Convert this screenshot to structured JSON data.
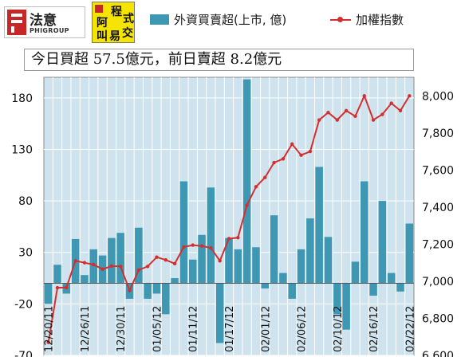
{
  "logos": {
    "left": {
      "chinese": "法意",
      "english": "PHIGROUP"
    },
    "right": {
      "chars": [
        "程",
        "式",
        "阿",
        "交",
        "叫",
        "易"
      ]
    }
  },
  "legend": {
    "bar_series": "外資買賣超(上市, 億)",
    "line_series": "加權指數"
  },
  "headline": "今日買超 57.5億元，前日賣超 8.2億元",
  "colors": {
    "bar": "#3e98b3",
    "line": "#d32f2f",
    "plot_bg": "#cfe3ee",
    "grid": "#ffffff"
  },
  "chart_data": {
    "type": "bar",
    "title": "",
    "x_tick_labels": [
      "12/20/11",
      "12/26/11",
      "12/30/11",
      "01/05/12",
      "01/11/12",
      "01/17/12",
      "02/01/12",
      "02/06/12",
      "02/10/12",
      "02/16/12",
      "02/22/12"
    ],
    "left_axis": {
      "min": -70,
      "max": 200,
      "ticks": [
        -70,
        -20,
        30,
        80,
        130,
        180
      ]
    },
    "right_axis": {
      "min": 6600,
      "max": 8100,
      "ticks": [
        "6,600",
        "6,800",
        "7,000",
        "7,200",
        "7,400",
        "7,600",
        "7,800",
        "8,000"
      ]
    },
    "grid": true,
    "legend_position": "top",
    "series": [
      {
        "name": "外資買賣超(上市, 億)",
        "type": "bar",
        "axis": "left",
        "values": [
          -20,
          18,
          -10,
          43,
          8,
          33,
          27,
          44,
          49,
          -15,
          54,
          -15,
          -10,
          -30,
          5,
          99,
          23,
          47,
          93,
          -58,
          44,
          33,
          198,
          35,
          -5,
          66,
          10,
          -15,
          33,
          63,
          113,
          45,
          -30,
          -45,
          21,
          99,
          -12,
          80,
          10,
          -8,
          58
        ]
      },
      {
        "name": "加權指數",
        "type": "line",
        "axis": "right",
        "values": [
          6670,
          6965,
          6966,
          7110,
          7100,
          7090,
          7065,
          7082,
          7080,
          6950,
          7060,
          7080,
          7130,
          7115,
          7095,
          7185,
          7195,
          7190,
          7180,
          7110,
          7230,
          7235,
          7410,
          7510,
          7560,
          7640,
          7660,
          7740,
          7680,
          7700,
          7870,
          7910,
          7870,
          7920,
          7890,
          8000,
          7870,
          7900,
          7960,
          7920,
          8000
        ]
      }
    ]
  }
}
